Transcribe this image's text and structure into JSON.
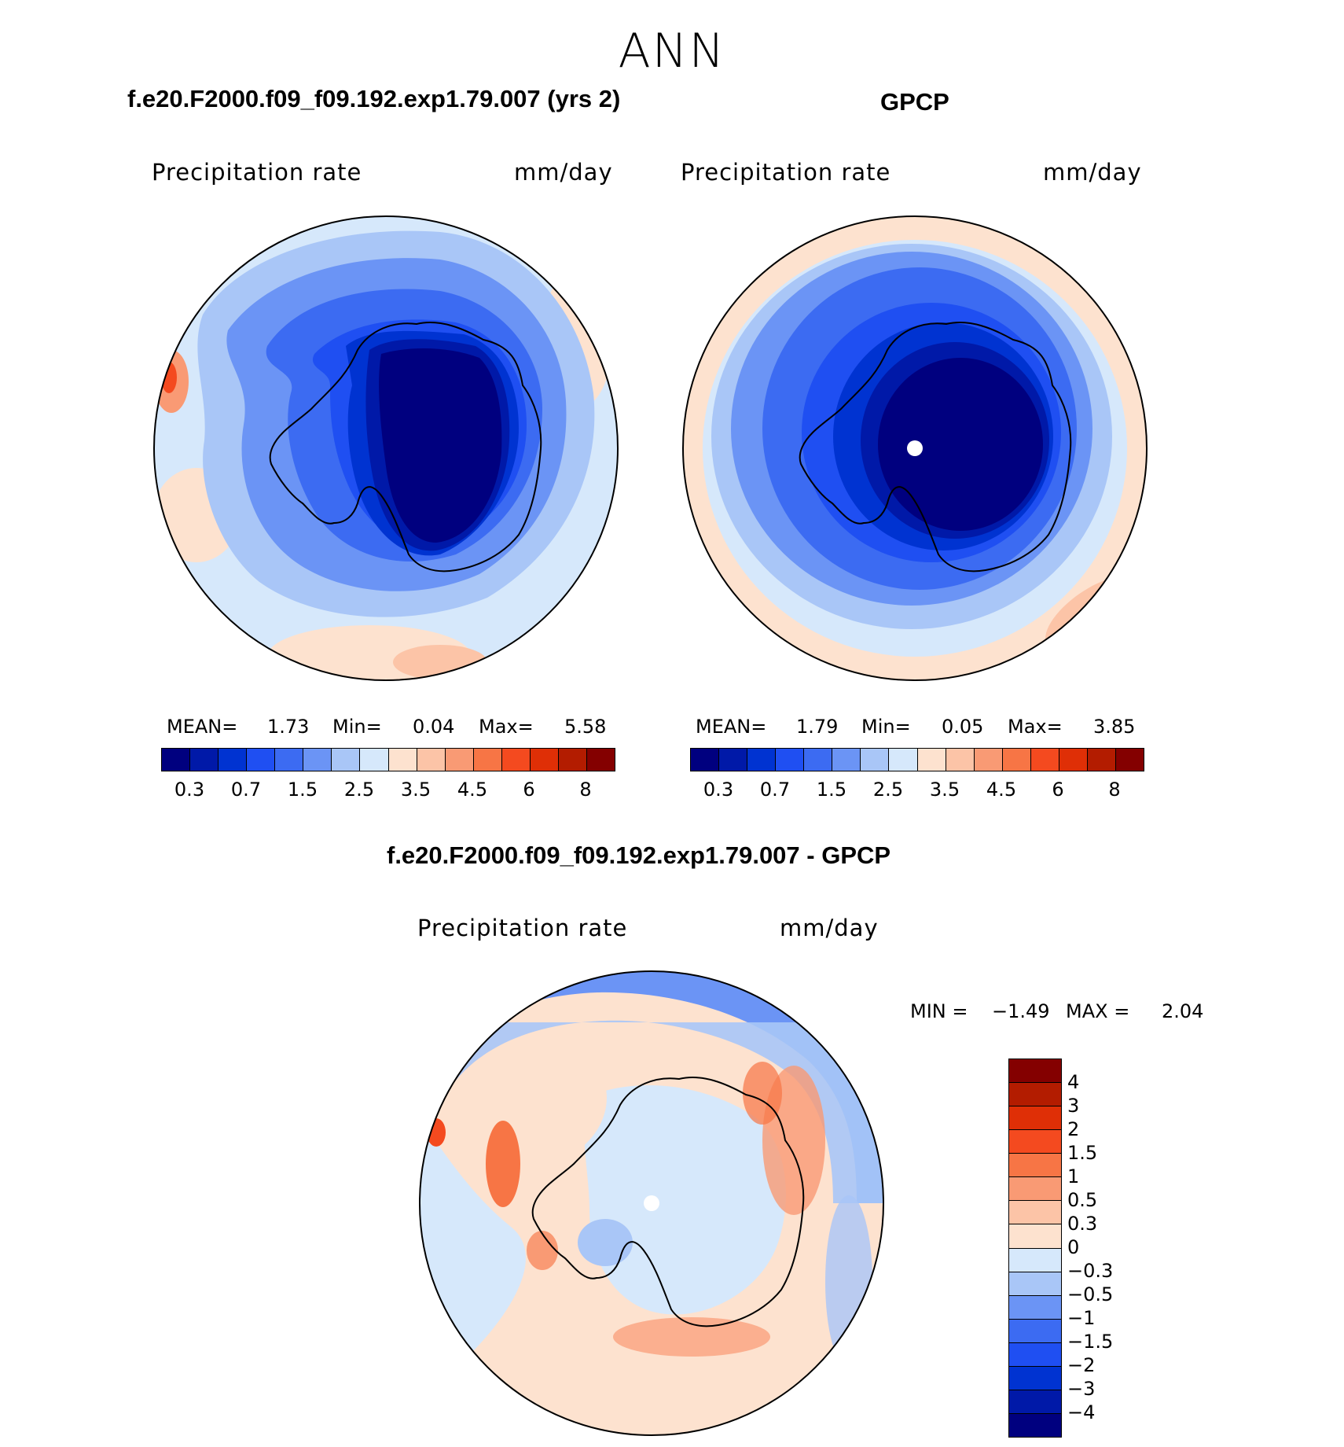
{
  "title": "ANN",
  "panels": [
    {
      "id": "model",
      "title": "f.e20.F2000.f09_f09.192.exp1.79.007 (yrs 2)",
      "variable": "Precipitation rate",
      "units": "mm/day",
      "stats": {
        "mean_label": "MEAN=",
        "mean": "1.73",
        "min_label": "Min=",
        "min": "0.04",
        "max_label": "Max=",
        "max": "5.58"
      }
    },
    {
      "id": "obs",
      "title": "GPCP",
      "variable": "Precipitation rate",
      "units": "mm/day",
      "stats": {
        "mean_label": "MEAN=",
        "mean": "1.79",
        "min_label": "Min=",
        "min": "0.05",
        "max_label": "Max=",
        "max": "3.85"
      }
    },
    {
      "id": "diff",
      "title": "f.e20.F2000.f09_f09.192.exp1.79.007 - GPCP",
      "variable": "Precipitation rate",
      "units": "mm/day",
      "stats": {
        "min_label": "MIN =",
        "min": "−1.49",
        "max_label": "MAX =",
        "max": "2.04"
      }
    }
  ],
  "colorbar": {
    "colors": [
      "#00007f",
      "#0019a8",
      "#0033d1",
      "#1f4ff2",
      "#3c6bf2",
      "#6b94f5",
      "#a9c6f7",
      "#d6e8fb",
      "#fde2cf",
      "#fcc4a7",
      "#f99a74",
      "#f77545",
      "#f44a1f",
      "#df2f06",
      "#b31c00",
      "#840000"
    ],
    "seq_labels": [
      "0.3",
      "0.7",
      "1.5",
      "2.5",
      "3.5",
      "4.5",
      "6",
      "8"
    ],
    "diff_labels": [
      "4",
      "3",
      "2",
      "1.5",
      "1",
      "0.5",
      "0.3",
      "0",
      "−0.3",
      "−0.5",
      "−1",
      "−1.5",
      "−2",
      "−3",
      "−4"
    ]
  }
}
